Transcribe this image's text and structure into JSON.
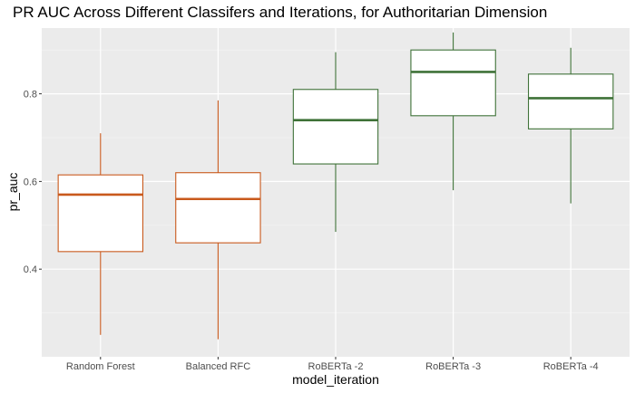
{
  "chart_data": {
    "type": "boxplot",
    "title": "PR AUC Across Different Classifers and Iterations, for Authoritarian Dimension",
    "xlabel": "model_iteration",
    "ylabel": "pr_auc",
    "ylim": [
      0.2,
      0.95
    ],
    "y_ticks": [
      0.4,
      0.6,
      0.8
    ],
    "y_tick_labels": [
      "0.4",
      "0.6",
      "0.8"
    ],
    "grid": true,
    "categories": [
      "Random Forest",
      "Balanced RFC",
      "RoBERTa -2",
      "RoBERTa -3",
      "RoBERTa -4"
    ],
    "boxes": [
      {
        "category": "Random Forest",
        "min": 0.25,
        "q1": 0.44,
        "median": 0.57,
        "q3": 0.615,
        "max": 0.71,
        "color": "#c9591c"
      },
      {
        "category": "Balanced RFC",
        "min": 0.24,
        "q1": 0.46,
        "median": 0.56,
        "q3": 0.62,
        "max": 0.785,
        "color": "#c9591c"
      },
      {
        "category": "RoBERTa -2",
        "min": 0.485,
        "q1": 0.64,
        "median": 0.74,
        "q3": 0.81,
        "max": 0.895,
        "color": "#3f7238"
      },
      {
        "category": "RoBERTa -3",
        "min": 0.58,
        "q1": 0.75,
        "median": 0.85,
        "q3": 0.9,
        "max": 0.94,
        "color": "#3f7238"
      },
      {
        "category": "RoBERTa -4",
        "min": 0.55,
        "q1": 0.72,
        "median": 0.79,
        "q3": 0.845,
        "max": 0.905,
        "color": "#3f7238"
      }
    ]
  }
}
